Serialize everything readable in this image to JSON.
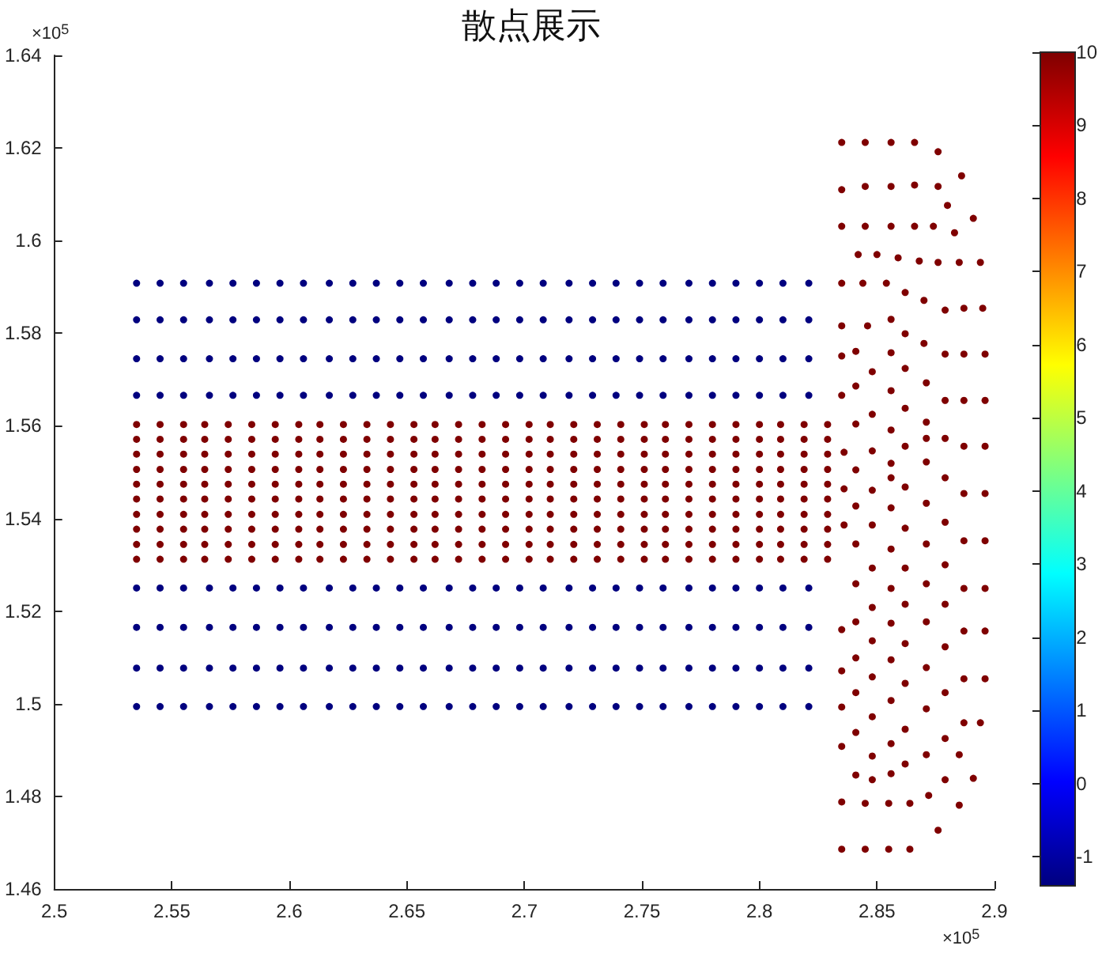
{
  "chart_data": {
    "type": "scatter",
    "title": "散点展示",
    "annotations": [
      "×10$^{5}$",
      "×10$^{5}$"
    ],
    "xlim": [
      2.5,
      2.9
    ],
    "xticks": [
      2.5,
      2.55,
      2.6,
      2.65,
      2.7,
      2.75,
      2.8,
      2.85,
      2.9
    ],
    "ylim": [
      1.46,
      1.64
    ],
    "yticks": [
      1.46,
      1.48,
      1.5,
      1.52,
      1.54,
      1.56,
      1.58,
      1.6,
      1.62,
      1.64
    ],
    "clim": [
      -1.4,
      10
    ],
    "cticks": [
      -1,
      0,
      1,
      2,
      3,
      4,
      5,
      6,
      7,
      8,
      9,
      10
    ],
    "marker": "circle",
    "grid": false,
    "series": [
      {
        "x": [
          2.535,
          2.545,
          2.555,
          2.566,
          2.576,
          2.586,
          2.596,
          2.606,
          2.617,
          2.627,
          2.637,
          2.647,
          2.657,
          2.668,
          2.678,
          2.688,
          2.698,
          2.708,
          2.719,
          2.729,
          2.739,
          2.749,
          2.759,
          2.77,
          2.78,
          2.79,
          2.8,
          2.81,
          2.821
        ],
        "values": [
          1.5908,
          1.5908,
          1.5908,
          1.5908,
          1.5908,
          1.5908,
          1.5908,
          1.5908,
          1.5908,
          1.5908,
          1.5908,
          1.5908,
          1.5908,
          1.5908,
          1.5908,
          1.5908,
          1.5908,
          1.5908,
          1.5908,
          1.5908,
          1.5908,
          1.5908,
          1.5908,
          1.5908,
          1.5908,
          1.5908,
          1.5908,
          1.5908,
          1.5908
        ],
        "cvalues": [
          -1.4,
          -1.4,
          -1.4,
          -1.4,
          -1.4,
          -1.4,
          -1.4,
          -1.4,
          -1.4,
          -1.4,
          -1.4,
          -1.4,
          -1.4,
          -1.4,
          -1.4,
          -1.4,
          -1.4,
          -1.4,
          -1.4,
          -1.4,
          -1.4,
          -1.4,
          -1.4,
          -1.4,
          -1.4,
          -1.4,
          -1.4,
          -1.4,
          -1.4
        ]
      },
      {
        "x": [
          2.535,
          2.545,
          2.555,
          2.566,
          2.576,
          2.586,
          2.596,
          2.606,
          2.617,
          2.627,
          2.637,
          2.647,
          2.657,
          2.668,
          2.678,
          2.688,
          2.698,
          2.708,
          2.719,
          2.729,
          2.739,
          2.749,
          2.759,
          2.77,
          2.78,
          2.79,
          2.8,
          2.81,
          2.821
        ],
        "values": [
          1.5829,
          1.5829,
          1.5829,
          1.5829,
          1.5829,
          1.5829,
          1.5829,
          1.5829,
          1.5829,
          1.5829,
          1.5829,
          1.5829,
          1.5829,
          1.5829,
          1.5829,
          1.5829,
          1.5829,
          1.5829,
          1.5829,
          1.5829,
          1.5829,
          1.5829,
          1.5829,
          1.5829,
          1.5829,
          1.5829,
          1.5829,
          1.5829,
          1.5829
        ],
        "cvalues": [
          -1.4,
          -1.4,
          -1.4,
          -1.4,
          -1.4,
          -1.4,
          -1.4,
          -1.4,
          -1.4,
          -1.4,
          -1.4,
          -1.4,
          -1.4,
          -1.4,
          -1.4,
          -1.4,
          -1.4,
          -1.4,
          -1.4,
          -1.4,
          -1.4,
          -1.4,
          -1.4,
          -1.4,
          -1.4,
          -1.4,
          -1.4,
          -1.4,
          -1.4
        ]
      },
      {
        "x": [
          2.535,
          2.545,
          2.555,
          2.566,
          2.576,
          2.586,
          2.596,
          2.606,
          2.617,
          2.627,
          2.637,
          2.647,
          2.657,
          2.668,
          2.678,
          2.688,
          2.698,
          2.708,
          2.719,
          2.729,
          2.739,
          2.749,
          2.759,
          2.77,
          2.78,
          2.79,
          2.8,
          2.81,
          2.821
        ],
        "values": [
          1.5745,
          1.5745,
          1.5745,
          1.5745,
          1.5745,
          1.5745,
          1.5745,
          1.5745,
          1.5745,
          1.5745,
          1.5745,
          1.5745,
          1.5745,
          1.5745,
          1.5745,
          1.5745,
          1.5745,
          1.5745,
          1.5745,
          1.5745,
          1.5745,
          1.5745,
          1.5745,
          1.5745,
          1.5745,
          1.5745,
          1.5745,
          1.5745,
          1.5745
        ],
        "cvalues": [
          -1.4,
          -1.4,
          -1.4,
          -1.4,
          -1.4,
          -1.4,
          -1.4,
          -1.4,
          -1.4,
          -1.4,
          -1.4,
          -1.4,
          -1.4,
          -1.4,
          -1.4,
          -1.4,
          -1.4,
          -1.4,
          -1.4,
          -1.4,
          -1.4,
          -1.4,
          -1.4,
          -1.4,
          -1.4,
          -1.4,
          -1.4,
          -1.4,
          -1.4
        ]
      },
      {
        "x": [
          2.535,
          2.545,
          2.555,
          2.566,
          2.576,
          2.586,
          2.596,
          2.606,
          2.617,
          2.627,
          2.637,
          2.647,
          2.657,
          2.668,
          2.678,
          2.688,
          2.698,
          2.708,
          2.719,
          2.729,
          2.739,
          2.749,
          2.759,
          2.77,
          2.78,
          2.79,
          2.8,
          2.81,
          2.821
        ],
        "values": [
          1.5666,
          1.5666,
          1.5666,
          1.5666,
          1.5666,
          1.5666,
          1.5666,
          1.5666,
          1.5666,
          1.5666,
          1.5666,
          1.5666,
          1.5666,
          1.5666,
          1.5666,
          1.5666,
          1.5666,
          1.5666,
          1.5666,
          1.5666,
          1.5666,
          1.5666,
          1.5666,
          1.5666,
          1.5666,
          1.5666,
          1.5666,
          1.5666,
          1.5666
        ],
        "cvalues": [
          -1.4,
          -1.4,
          -1.4,
          -1.4,
          -1.4,
          -1.4,
          -1.4,
          -1.4,
          -1.4,
          -1.4,
          -1.4,
          -1.4,
          -1.4,
          -1.4,
          -1.4,
          -1.4,
          -1.4,
          -1.4,
          -1.4,
          -1.4,
          -1.4,
          -1.4,
          -1.4,
          -1.4,
          -1.4,
          -1.4,
          -1.4,
          -1.4,
          -1.4
        ]
      },
      {
        "x": [
          2.535,
          2.545,
          2.555,
          2.564,
          2.574,
          2.584,
          2.594,
          2.604,
          2.613,
          2.623,
          2.633,
          2.643,
          2.653,
          2.662,
          2.672,
          2.682,
          2.692,
          2.702,
          2.711,
          2.721,
          2.731,
          2.741,
          2.751,
          2.76,
          2.77,
          2.78,
          2.79,
          2.8,
          2.809,
          2.819,
          2.829
        ],
        "values": [
          1.5603,
          1.5603,
          1.5603,
          1.5603,
          1.5603,
          1.5603,
          1.5603,
          1.5603,
          1.5603,
          1.5603,
          1.5603,
          1.5603,
          1.5603,
          1.5603,
          1.5603,
          1.5603,
          1.5603,
          1.5603,
          1.5603,
          1.5603,
          1.5603,
          1.5603,
          1.5603,
          1.5603,
          1.5603,
          1.5603,
          1.5603,
          1.5603,
          1.5603,
          1.5603,
          1.5603
        ],
        "cvalues": [
          10,
          10,
          10,
          10,
          10,
          10,
          10,
          10,
          10,
          10,
          10,
          10,
          10,
          10,
          10,
          10,
          10,
          10,
          10,
          10,
          10,
          10,
          10,
          10,
          10,
          10,
          10,
          10,
          10,
          10,
          10
        ]
      },
      {
        "x": [
          2.535,
          2.545,
          2.555,
          2.564,
          2.574,
          2.584,
          2.594,
          2.604,
          2.613,
          2.623,
          2.633,
          2.643,
          2.653,
          2.662,
          2.672,
          2.682,
          2.692,
          2.702,
          2.711,
          2.721,
          2.731,
          2.741,
          2.751,
          2.76,
          2.77,
          2.78,
          2.79,
          2.8,
          2.809,
          2.819,
          2.829
        ],
        "values": [
          1.5571,
          1.5571,
          1.5571,
          1.5571,
          1.5571,
          1.5571,
          1.5571,
          1.5571,
          1.5571,
          1.5571,
          1.5571,
          1.5571,
          1.5571,
          1.5571,
          1.5571,
          1.5571,
          1.5571,
          1.5571,
          1.5571,
          1.5571,
          1.5571,
          1.5571,
          1.5571,
          1.5571,
          1.5571,
          1.5571,
          1.5571,
          1.5571,
          1.5571,
          1.5571,
          1.5571
        ],
        "cvalues": [
          10,
          10,
          10,
          10,
          10,
          10,
          10,
          10,
          10,
          10,
          10,
          10,
          10,
          10,
          10,
          10,
          10,
          10,
          10,
          10,
          10,
          10,
          10,
          10,
          10,
          10,
          10,
          10,
          10,
          10,
          10
        ]
      },
      {
        "x": [
          2.535,
          2.545,
          2.555,
          2.564,
          2.574,
          2.584,
          2.594,
          2.604,
          2.613,
          2.623,
          2.633,
          2.643,
          2.653,
          2.662,
          2.672,
          2.682,
          2.692,
          2.702,
          2.711,
          2.721,
          2.731,
          2.741,
          2.751,
          2.76,
          2.77,
          2.78,
          2.79,
          2.8,
          2.809,
          2.819,
          2.829
        ],
        "values": [
          1.5539,
          1.5539,
          1.5539,
          1.5539,
          1.5539,
          1.5539,
          1.5539,
          1.5539,
          1.5539,
          1.5539,
          1.5539,
          1.5539,
          1.5539,
          1.5539,
          1.5539,
          1.5539,
          1.5539,
          1.5539,
          1.5539,
          1.5539,
          1.5539,
          1.5539,
          1.5539,
          1.5539,
          1.5539,
          1.5539,
          1.5539,
          1.5539,
          1.5539,
          1.5539,
          1.5539
        ],
        "cvalues": [
          10,
          10,
          10,
          10,
          10,
          10,
          10,
          10,
          10,
          10,
          10,
          10,
          10,
          10,
          10,
          10,
          10,
          10,
          10,
          10,
          10,
          10,
          10,
          10,
          10,
          10,
          10,
          10,
          10,
          10,
          10
        ]
      },
      {
        "x": [
          2.535,
          2.545,
          2.555,
          2.564,
          2.574,
          2.584,
          2.594,
          2.604,
          2.613,
          2.623,
          2.633,
          2.643,
          2.653,
          2.662,
          2.672,
          2.682,
          2.692,
          2.702,
          2.711,
          2.721,
          2.731,
          2.741,
          2.751,
          2.76,
          2.77,
          2.78,
          2.79,
          2.8,
          2.809,
          2.819,
          2.829
        ],
        "values": [
          1.5506,
          1.5506,
          1.5506,
          1.5506,
          1.5506,
          1.5506,
          1.5506,
          1.5506,
          1.5506,
          1.5506,
          1.5506,
          1.5506,
          1.5506,
          1.5506,
          1.5506,
          1.5506,
          1.5506,
          1.5506,
          1.5506,
          1.5506,
          1.5506,
          1.5506,
          1.5506,
          1.5506,
          1.5506,
          1.5506,
          1.5506,
          1.5506,
          1.5506,
          1.5506,
          1.5506
        ],
        "cvalues": [
          10,
          10,
          10,
          10,
          10,
          10,
          10,
          10,
          10,
          10,
          10,
          10,
          10,
          10,
          10,
          10,
          10,
          10,
          10,
          10,
          10,
          10,
          10,
          10,
          10,
          10,
          10,
          10,
          10,
          10,
          10
        ]
      },
      {
        "x": [
          2.535,
          2.545,
          2.555,
          2.564,
          2.574,
          2.584,
          2.594,
          2.604,
          2.613,
          2.623,
          2.633,
          2.643,
          2.653,
          2.662,
          2.672,
          2.682,
          2.692,
          2.702,
          2.711,
          2.721,
          2.731,
          2.741,
          2.751,
          2.76,
          2.77,
          2.78,
          2.79,
          2.8,
          2.809,
          2.819,
          2.829
        ],
        "values": [
          1.5474,
          1.5474,
          1.5474,
          1.5474,
          1.5474,
          1.5474,
          1.5474,
          1.5474,
          1.5474,
          1.5474,
          1.5474,
          1.5474,
          1.5474,
          1.5474,
          1.5474,
          1.5474,
          1.5474,
          1.5474,
          1.5474,
          1.5474,
          1.5474,
          1.5474,
          1.5474,
          1.5474,
          1.5474,
          1.5474,
          1.5474,
          1.5474,
          1.5474,
          1.5474,
          1.5474
        ],
        "cvalues": [
          10,
          10,
          10,
          10,
          10,
          10,
          10,
          10,
          10,
          10,
          10,
          10,
          10,
          10,
          10,
          10,
          10,
          10,
          10,
          10,
          10,
          10,
          10,
          10,
          10,
          10,
          10,
          10,
          10,
          10,
          10
        ]
      },
      {
        "x": [
          2.535,
          2.545,
          2.555,
          2.564,
          2.574,
          2.584,
          2.594,
          2.604,
          2.613,
          2.623,
          2.633,
          2.643,
          2.653,
          2.662,
          2.672,
          2.682,
          2.692,
          2.702,
          2.711,
          2.721,
          2.731,
          2.741,
          2.751,
          2.76,
          2.77,
          2.78,
          2.79,
          2.8,
          2.809,
          2.819,
          2.829
        ],
        "values": [
          1.5442,
          1.5442,
          1.5442,
          1.5442,
          1.5442,
          1.5442,
          1.5442,
          1.5442,
          1.5442,
          1.5442,
          1.5442,
          1.5442,
          1.5442,
          1.5442,
          1.5442,
          1.5442,
          1.5442,
          1.5442,
          1.5442,
          1.5442,
          1.5442,
          1.5442,
          1.5442,
          1.5442,
          1.5442,
          1.5442,
          1.5442,
          1.5442,
          1.5442,
          1.5442,
          1.5442
        ],
        "cvalues": [
          10,
          10,
          10,
          10,
          10,
          10,
          10,
          10,
          10,
          10,
          10,
          10,
          10,
          10,
          10,
          10,
          10,
          10,
          10,
          10,
          10,
          10,
          10,
          10,
          10,
          10,
          10,
          10,
          10,
          10,
          10
        ]
      },
      {
        "x": [
          2.535,
          2.545,
          2.555,
          2.564,
          2.574,
          2.584,
          2.594,
          2.604,
          2.613,
          2.623,
          2.633,
          2.643,
          2.653,
          2.662,
          2.672,
          2.682,
          2.692,
          2.702,
          2.711,
          2.721,
          2.731,
          2.741,
          2.751,
          2.76,
          2.77,
          2.78,
          2.79,
          2.8,
          2.809,
          2.819,
          2.829
        ],
        "values": [
          1.5409,
          1.5409,
          1.5409,
          1.5409,
          1.5409,
          1.5409,
          1.5409,
          1.5409,
          1.5409,
          1.5409,
          1.5409,
          1.5409,
          1.5409,
          1.5409,
          1.5409,
          1.5409,
          1.5409,
          1.5409,
          1.5409,
          1.5409,
          1.5409,
          1.5409,
          1.5409,
          1.5409,
          1.5409,
          1.5409,
          1.5409,
          1.5409,
          1.5409,
          1.5409,
          1.5409
        ],
        "cvalues": [
          10,
          10,
          10,
          10,
          10,
          10,
          10,
          10,
          10,
          10,
          10,
          10,
          10,
          10,
          10,
          10,
          10,
          10,
          10,
          10,
          10,
          10,
          10,
          10,
          10,
          10,
          10,
          10,
          10,
          10,
          10
        ]
      },
      {
        "x": [
          2.535,
          2.545,
          2.555,
          2.564,
          2.574,
          2.584,
          2.594,
          2.604,
          2.613,
          2.623,
          2.633,
          2.643,
          2.653,
          2.662,
          2.672,
          2.682,
          2.692,
          2.702,
          2.711,
          2.721,
          2.731,
          2.741,
          2.751,
          2.76,
          2.77,
          2.78,
          2.79,
          2.8,
          2.809,
          2.819,
          2.829
        ],
        "values": [
          1.5377,
          1.5377,
          1.5377,
          1.5377,
          1.5377,
          1.5377,
          1.5377,
          1.5377,
          1.5377,
          1.5377,
          1.5377,
          1.5377,
          1.5377,
          1.5377,
          1.5377,
          1.5377,
          1.5377,
          1.5377,
          1.5377,
          1.5377,
          1.5377,
          1.5377,
          1.5377,
          1.5377,
          1.5377,
          1.5377,
          1.5377,
          1.5377,
          1.5377,
          1.5377,
          1.5377
        ],
        "cvalues": [
          10,
          10,
          10,
          10,
          10,
          10,
          10,
          10,
          10,
          10,
          10,
          10,
          10,
          10,
          10,
          10,
          10,
          10,
          10,
          10,
          10,
          10,
          10,
          10,
          10,
          10,
          10,
          10,
          10,
          10,
          10
        ]
      },
      {
        "x": [
          2.535,
          2.545,
          2.555,
          2.564,
          2.574,
          2.584,
          2.594,
          2.604,
          2.613,
          2.623,
          2.633,
          2.643,
          2.653,
          2.662,
          2.672,
          2.682,
          2.692,
          2.702,
          2.711,
          2.721,
          2.731,
          2.741,
          2.751,
          2.76,
          2.77,
          2.78,
          2.79,
          2.8,
          2.809,
          2.819,
          2.829
        ],
        "values": [
          1.5344,
          1.5344,
          1.5344,
          1.5344,
          1.5344,
          1.5344,
          1.5344,
          1.5344,
          1.5344,
          1.5344,
          1.5344,
          1.5344,
          1.5344,
          1.5344,
          1.5344,
          1.5344,
          1.5344,
          1.5344,
          1.5344,
          1.5344,
          1.5344,
          1.5344,
          1.5344,
          1.5344,
          1.5344,
          1.5344,
          1.5344,
          1.5344,
          1.5344,
          1.5344,
          1.5344
        ],
        "cvalues": [
          10,
          10,
          10,
          10,
          10,
          10,
          10,
          10,
          10,
          10,
          10,
          10,
          10,
          10,
          10,
          10,
          10,
          10,
          10,
          10,
          10,
          10,
          10,
          10,
          10,
          10,
          10,
          10,
          10,
          10,
          10
        ]
      },
      {
        "x": [
          2.535,
          2.545,
          2.555,
          2.564,
          2.574,
          2.584,
          2.594,
          2.604,
          2.613,
          2.623,
          2.633,
          2.643,
          2.653,
          2.662,
          2.672,
          2.682,
          2.692,
          2.702,
          2.711,
          2.721,
          2.731,
          2.741,
          2.751,
          2.76,
          2.77,
          2.78,
          2.79,
          2.8,
          2.809,
          2.819,
          2.829
        ],
        "values": [
          1.5312,
          1.5312,
          1.5312,
          1.5312,
          1.5312,
          1.5312,
          1.5312,
          1.5312,
          1.5312,
          1.5312,
          1.5312,
          1.5312,
          1.5312,
          1.5312,
          1.5312,
          1.5312,
          1.5312,
          1.5312,
          1.5312,
          1.5312,
          1.5312,
          1.5312,
          1.5312,
          1.5312,
          1.5312,
          1.5312,
          1.5312,
          1.5312,
          1.5312,
          1.5312,
          1.5312
        ],
        "cvalues": [
          10,
          10,
          10,
          10,
          10,
          10,
          10,
          10,
          10,
          10,
          10,
          10,
          10,
          10,
          10,
          10,
          10,
          10,
          10,
          10,
          10,
          10,
          10,
          10,
          10,
          10,
          10,
          10,
          10,
          10,
          10
        ]
      },
      {
        "x": [
          2.535,
          2.545,
          2.555,
          2.566,
          2.576,
          2.586,
          2.596,
          2.606,
          2.617,
          2.627,
          2.637,
          2.647,
          2.657,
          2.668,
          2.678,
          2.688,
          2.698,
          2.708,
          2.719,
          2.729,
          2.739,
          2.749,
          2.759,
          2.77,
          2.78,
          2.79,
          2.8,
          2.81,
          2.821
        ],
        "values": [
          1.525,
          1.525,
          1.525,
          1.525,
          1.525,
          1.525,
          1.525,
          1.525,
          1.525,
          1.525,
          1.525,
          1.525,
          1.525,
          1.525,
          1.525,
          1.525,
          1.525,
          1.525,
          1.525,
          1.525,
          1.525,
          1.525,
          1.525,
          1.525,
          1.525,
          1.525,
          1.525,
          1.525,
          1.525
        ],
        "cvalues": [
          -1.4,
          -1.4,
          -1.4,
          -1.4,
          -1.4,
          -1.4,
          -1.4,
          -1.4,
          -1.4,
          -1.4,
          -1.4,
          -1.4,
          -1.4,
          -1.4,
          -1.4,
          -1.4,
          -1.4,
          -1.4,
          -1.4,
          -1.4,
          -1.4,
          -1.4,
          -1.4,
          -1.4,
          -1.4,
          -1.4,
          -1.4,
          -1.4,
          -1.4
        ]
      },
      {
        "x": [
          2.535,
          2.545,
          2.555,
          2.566,
          2.576,
          2.586,
          2.596,
          2.606,
          2.617,
          2.627,
          2.637,
          2.647,
          2.657,
          2.668,
          2.678,
          2.688,
          2.698,
          2.708,
          2.719,
          2.729,
          2.739,
          2.749,
          2.759,
          2.77,
          2.78,
          2.79,
          2.8,
          2.81,
          2.821
        ],
        "values": [
          1.5165,
          1.5165,
          1.5165,
          1.5165,
          1.5165,
          1.5165,
          1.5165,
          1.5165,
          1.5165,
          1.5165,
          1.5165,
          1.5165,
          1.5165,
          1.5165,
          1.5165,
          1.5165,
          1.5165,
          1.5165,
          1.5165,
          1.5165,
          1.5165,
          1.5165,
          1.5165,
          1.5165,
          1.5165,
          1.5165,
          1.5165,
          1.5165,
          1.5165
        ],
        "cvalues": [
          -1.4,
          -1.4,
          -1.4,
          -1.4,
          -1.4,
          -1.4,
          -1.4,
          -1.4,
          -1.4,
          -1.4,
          -1.4,
          -1.4,
          -1.4,
          -1.4,
          -1.4,
          -1.4,
          -1.4,
          -1.4,
          -1.4,
          -1.4,
          -1.4,
          -1.4,
          -1.4,
          -1.4,
          -1.4,
          -1.4,
          -1.4,
          -1.4,
          -1.4
        ]
      },
      {
        "x": [
          2.535,
          2.545,
          2.555,
          2.566,
          2.576,
          2.586,
          2.596,
          2.606,
          2.617,
          2.627,
          2.637,
          2.647,
          2.657,
          2.668,
          2.678,
          2.688,
          2.698,
          2.708,
          2.719,
          2.729,
          2.739,
          2.749,
          2.759,
          2.77,
          2.78,
          2.79,
          2.8,
          2.81,
          2.821
        ],
        "values": [
          1.5077,
          1.5077,
          1.5077,
          1.5077,
          1.5077,
          1.5077,
          1.5077,
          1.5077,
          1.5077,
          1.5077,
          1.5077,
          1.5077,
          1.5077,
          1.5077,
          1.5077,
          1.5077,
          1.5077,
          1.5077,
          1.5077,
          1.5077,
          1.5077,
          1.5077,
          1.5077,
          1.5077,
          1.5077,
          1.5077,
          1.5077,
          1.5077,
          1.5077
        ],
        "cvalues": [
          -1.4,
          -1.4,
          -1.4,
          -1.4,
          -1.4,
          -1.4,
          -1.4,
          -1.4,
          -1.4,
          -1.4,
          -1.4,
          -1.4,
          -1.4,
          -1.4,
          -1.4,
          -1.4,
          -1.4,
          -1.4,
          -1.4,
          -1.4,
          -1.4,
          -1.4,
          -1.4,
          -1.4,
          -1.4,
          -1.4,
          -1.4,
          -1.4,
          -1.4
        ]
      },
      {
        "x": [
          2.535,
          2.545,
          2.555,
          2.566,
          2.576,
          2.586,
          2.596,
          2.606,
          2.617,
          2.627,
          2.637,
          2.647,
          2.657,
          2.668,
          2.678,
          2.688,
          2.698,
          2.708,
          2.719,
          2.729,
          2.739,
          2.749,
          2.759,
          2.77,
          2.78,
          2.79,
          2.8,
          2.81,
          2.821
        ],
        "values": [
          1.4994,
          1.4994,
          1.4994,
          1.4994,
          1.4994,
          1.4994,
          1.4994,
          1.4994,
          1.4994,
          1.4994,
          1.4994,
          1.4994,
          1.4994,
          1.4994,
          1.4994,
          1.4994,
          1.4994,
          1.4994,
          1.4994,
          1.4994,
          1.4994,
          1.4994,
          1.4994,
          1.4994,
          1.4994,
          1.4994,
          1.4994,
          1.4994,
          1.4994
        ],
        "cvalues": [
          -1.4,
          -1.4,
          -1.4,
          -1.4,
          -1.4,
          -1.4,
          -1.4,
          -1.4,
          -1.4,
          -1.4,
          -1.4,
          -1.4,
          -1.4,
          -1.4,
          -1.4,
          -1.4,
          -1.4,
          -1.4,
          -1.4,
          -1.4,
          -1.4,
          -1.4,
          -1.4,
          -1.4,
          -1.4,
          -1.4,
          -1.4,
          -1.4,
          -1.4
        ]
      },
      {
        "x": [
          2.835,
          2.845,
          2.856,
          2.866,
          2.876
        ],
        "values": [
          1.6212,
          1.6212,
          1.6212,
          1.6212,
          1.6192
        ],
        "cvalues": [
          10,
          10,
          10,
          10,
          10
        ]
      },
      {
        "x": [
          2.835,
          2.845,
          2.856,
          2.866,
          2.876,
          2.886,
          2.88
        ],
        "values": [
          1.611,
          1.6117,
          1.6117,
          1.612,
          1.6117,
          1.614,
          1.6076
        ],
        "cvalues": [
          10,
          10,
          10,
          10,
          10,
          10,
          10
        ]
      },
      {
        "x": [
          2.835,
          2.845,
          2.856,
          2.866,
          2.874,
          2.883,
          2.891
        ],
        "values": [
          1.6031,
          1.6031,
          1.6031,
          1.6031,
          1.6031,
          1.6017,
          1.6048
        ],
        "cvalues": [
          10,
          10,
          10,
          10,
          10,
          10,
          10
        ]
      },
      {
        "x": [
          2.842,
          2.85,
          2.859,
          2.868,
          2.876,
          2.885,
          2.894
        ],
        "values": [
          1.597,
          1.597,
          1.5963,
          1.5956,
          1.5953,
          1.5953,
          1.5953
        ],
        "cvalues": [
          10,
          10,
          10,
          10,
          10,
          10,
          10
        ]
      },
      {
        "x": [
          2.835,
          2.844,
          2.854,
          2.862,
          2.87,
          2.879,
          2.887,
          2.895
        ],
        "values": [
          1.5908,
          1.5908,
          1.5908,
          1.5888,
          1.5871,
          1.585,
          1.5854,
          1.5854
        ],
        "cvalues": [
          10,
          10,
          10,
          10,
          10,
          10,
          10,
          10
        ]
      },
      {
        "x": [
          2.835,
          2.846,
          2.856,
          2.862,
          2.87,
          2.879,
          2.887,
          2.896
        ],
        "values": [
          1.5816,
          1.5816,
          1.583,
          1.5799,
          1.5778,
          1.5755,
          1.5755,
          1.5755
        ],
        "cvalues": [
          10,
          10,
          10,
          10,
          10,
          10,
          10,
          10
        ]
      },
      {
        "x": [
          2.835,
          2.841,
          2.848,
          2.856,
          2.862,
          2.871
        ],
        "values": [
          1.5751,
          1.5761,
          1.5717,
          1.5758,
          1.5724,
          1.5693
        ],
        "cvalues": [
          10,
          10,
          10,
          10,
          10,
          10
        ]
      },
      {
        "x": [
          2.835,
          2.841,
          2.848,
          2.856,
          2.862,
          2.871,
          2.879,
          2.887,
          2.896
        ],
        "values": [
          1.5666,
          1.5686,
          1.5625,
          1.5676,
          1.5638,
          1.5608,
          1.5655,
          1.5655,
          1.5655
        ],
        "cvalues": [
          10,
          10,
          10,
          10,
          10,
          10,
          10,
          10,
          10
        ]
      },
      {
        "x": [
          2.841,
          2.856,
          2.862,
          2.871,
          2.879,
          2.887,
          2.896
        ],
        "values": [
          1.5604,
          1.5591,
          1.5556,
          1.5573,
          1.5573,
          1.5556,
          1.5556
        ],
        "cvalues": [
          10,
          10,
          10,
          10,
          10,
          10,
          10
        ]
      },
      {
        "x": [
          2.836,
          2.848,
          2.856,
          2.871,
          2.879
        ],
        "values": [
          1.5543,
          1.5546,
          1.5519,
          1.5522,
          1.5488
        ],
        "cvalues": [
          10,
          10,
          10,
          10,
          10
        ]
      },
      {
        "x": [
          2.841,
          2.848,
          2.856,
          2.862,
          2.887,
          2.896,
          2.836
        ],
        "values": [
          1.5505,
          1.5461,
          1.5488,
          1.5468,
          1.5454,
          1.5454,
          1.5464
        ],
        "cvalues": [
          10,
          10,
          10,
          10,
          10,
          10,
          10
        ]
      },
      {
        "x": [
          2.841,
          2.856,
          2.871
        ],
        "values": [
          1.5427,
          1.5423,
          1.5433
        ],
        "cvalues": [
          10,
          10,
          10
        ]
      },
      {
        "x": [
          2.836,
          2.848,
          2.862,
          2.879
        ],
        "values": [
          1.5386,
          1.5386,
          1.5379,
          1.5392
        ],
        "cvalues": [
          10,
          10,
          10,
          10
        ]
      },
      {
        "x": [
          2.841,
          2.856,
          2.871,
          2.887,
          2.896
        ],
        "values": [
          1.5345,
          1.5334,
          1.5345,
          1.5352,
          1.5352
        ],
        "cvalues": [
          10,
          10,
          10,
          10,
          10
        ]
      },
      {
        "x": [
          2.848,
          2.862,
          2.879
        ],
        "values": [
          1.5293,
          1.5293,
          1.53
        ],
        "cvalues": [
          10,
          10,
          10
        ]
      },
      {
        "x": [
          2.841,
          2.856,
          2.871,
          2.887,
          2.896
        ],
        "values": [
          1.5259,
          1.5249,
          1.5259,
          1.5249,
          1.5249
        ],
        "cvalues": [
          10,
          10,
          10,
          10,
          10
        ]
      },
      {
        "x": [
          2.848,
          2.862,
          2.879
        ],
        "values": [
          1.5208,
          1.5215,
          1.5215
        ],
        "cvalues": [
          10,
          10,
          10
        ]
      },
      {
        "x": [
          2.835,
          2.841,
          2.856,
          2.871,
          2.887,
          2.896
        ],
        "values": [
          1.516,
          1.5177,
          1.5174,
          1.5177,
          1.5157,
          1.5157
        ],
        "cvalues": [
          10,
          10,
          10,
          10,
          10,
          10
        ]
      },
      {
        "x": [
          2.848,
          2.862,
          2.879
        ],
        "values": [
          1.5136,
          1.513,
          1.5123
        ],
        "cvalues": [
          10,
          10,
          10
        ]
      },
      {
        "x": [
          2.835,
          2.841,
          2.856,
          2.871,
          2.887,
          2.896
        ],
        "values": [
          1.5071,
          1.5099,
          1.5095,
          1.5078,
          1.5054,
          1.5054
        ],
        "cvalues": [
          10,
          10,
          10,
          10,
          10,
          10
        ]
      },
      {
        "x": [
          2.848,
          2.862,
          2.879
        ],
        "values": [
          1.5058,
          1.5044,
          1.5024
        ],
        "cvalues": [
          10,
          10,
          10
        ]
      },
      {
        "x": [
          2.835,
          2.841,
          2.856,
          2.871,
          2.887,
          2.894
        ],
        "values": [
          1.4993,
          1.5024,
          1.5007,
          1.4989,
          1.4959,
          1.4959
        ],
        "cvalues": [
          10,
          10,
          10,
          10,
          10,
          10
        ]
      },
      {
        "x": [
          2.848,
          2.862,
          2.879
        ],
        "values": [
          1.4972,
          1.4945,
          1.4925
        ],
        "cvalues": [
          10,
          10,
          10
        ]
      },
      {
        "x": [
          2.835,
          2.841,
          2.856,
          2.871,
          2.885
        ],
        "values": [
          1.4908,
          1.4938,
          1.4914,
          1.489,
          1.489
        ],
        "cvalues": [
          10,
          10,
          10,
          10,
          10
        ]
      },
      {
        "x": [
          2.848,
          2.862,
          2.879,
          2.891
        ],
        "values": [
          1.4887,
          1.487,
          1.4836,
          1.4839
        ],
        "cvalues": [
          10,
          10,
          10,
          10
        ]
      },
      {
        "x": [
          2.841,
          2.848,
          2.856,
          2.872,
          2.885
        ],
        "values": [
          1.4846,
          1.4836,
          1.4849,
          1.4802,
          1.4781
        ],
        "cvalues": [
          10,
          10,
          10,
          10,
          10
        ]
      },
      {
        "x": [
          2.835,
          2.845,
          2.855,
          2.864,
          2.876
        ],
        "values": [
          1.4788,
          1.4785,
          1.4785,
          1.4785,
          1.4727
        ],
        "cvalues": [
          10,
          10,
          10,
          10,
          10
        ]
      },
      {
        "x": [
          2.835,
          2.845,
          2.855,
          2.864
        ],
        "values": [
          1.4686,
          1.4686,
          1.4686,
          1.4686
        ],
        "cvalues": [
          10,
          10,
          10,
          10
        ]
      }
    ]
  }
}
